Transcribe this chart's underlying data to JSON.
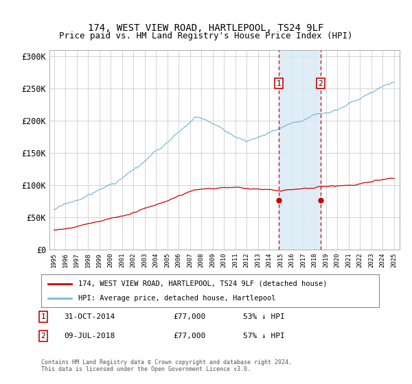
{
  "title1": "174, WEST VIEW ROAD, HARTLEPOOL, TS24 9LF",
  "title2": "Price paid vs. HM Land Registry's House Price Index (HPI)",
  "legend_line1": "174, WEST VIEW ROAD, HARTLEPOOL, TS24 9LF (detached house)",
  "legend_line2": "HPI: Average price, detached house, Hartlepool",
  "annotation1_label": "1",
  "annotation1_date": "31-OCT-2014",
  "annotation1_price": "£77,000",
  "annotation1_pct": "53% ↓ HPI",
  "annotation2_label": "2",
  "annotation2_date": "09-JUL-2018",
  "annotation2_price": "£77,000",
  "annotation2_pct": "57% ↓ HPI",
  "footnote": "Contains HM Land Registry data © Crown copyright and database right 2024.\nThis data is licensed under the Open Government Licence v3.0.",
  "sale1_year": 2014.83,
  "sale1_price": 77000,
  "sale2_year": 2018.52,
  "sale2_price": 77000,
  "hpi_color": "#7db9d9",
  "property_color": "#cc0000",
  "vline_color": "#cc0000",
  "shade_color": "#daeaf5",
  "ylim_min": 0,
  "ylim_max": 310000,
  "background_color": "#ffffff",
  "grid_color": "#cccccc"
}
